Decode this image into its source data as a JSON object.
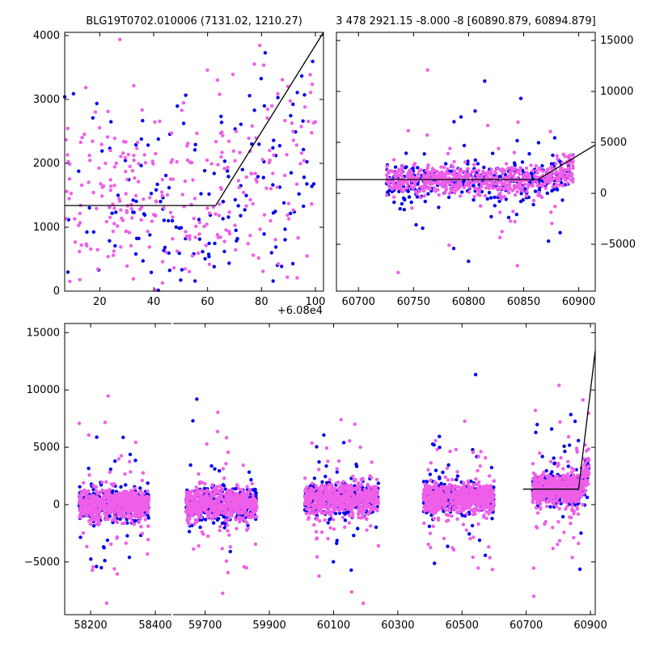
{
  "chart_data": [
    {
      "type": "scatter",
      "panel": "top-left",
      "title": "BLG19T0702.010006 (7131.02, 1210.27)",
      "x_offset_label": "+6.08e4",
      "xlim": [
        7,
        103
      ],
      "ylim": [
        0,
        4050
      ],
      "x_ticks": [
        20,
        40,
        60,
        80,
        100
      ],
      "x_tick_labels": [
        "20",
        "40",
        "60",
        "80",
        "100"
      ],
      "y_ticks": [
        0,
        1000,
        2000,
        3000,
        4000
      ],
      "y_tick_labels": [
        "0",
        "1000",
        "2000",
        "3000",
        "4000"
      ],
      "model_line": {
        "x": [
          7,
          63,
          103
        ],
        "y": [
          1340,
          1340,
          4050
        ]
      },
      "series": [
        {
          "color": "#0000ee",
          "cluster": {
            "xmin": 7,
            "xmax": 100,
            "base": 1300,
            "spread": 800,
            "outliers": 0.12,
            "count": 170
          }
        },
        {
          "color": "#ee5ee8",
          "cluster": {
            "xmin": 7,
            "xmax": 100,
            "base": 1500,
            "spread": 700,
            "outliers": 0.12,
            "count": 300
          }
        }
      ]
    },
    {
      "type": "scatter",
      "panel": "top-right",
      "title": "3 478 2921.15 -8.000 -8 [60890.879, 60894.879]",
      "xlim": [
        60680,
        60915
      ],
      "ylim": [
        -9600,
        15800
      ],
      "x_ticks": [
        60700,
        60750,
        60800,
        60850,
        60900
      ],
      "x_tick_labels": [
        "60700",
        "60750",
        "60800",
        "60850",
        "60900"
      ],
      "y_ticks": [
        -5000,
        0,
        5000,
        10000,
        15000
      ],
      "y_tick_labels": [
        "−5000",
        "0",
        "5000",
        "10000",
        "15000"
      ],
      "model_line": {
        "x": [
          60680,
          60863,
          60915
        ],
        "y": [
          1350,
          1350,
          4750
        ]
      },
      "series": [
        {
          "color": "#0000ee",
          "cluster": {
            "xmin": 60725,
            "xmax": 60895,
            "base": 1100,
            "spread": 900,
            "outliers": 0.1,
            "count": 350
          }
        },
        {
          "color": "#ee5ee8",
          "cluster": {
            "xmin": 60725,
            "xmax": 60895,
            "base": 1300,
            "spread": 700,
            "outliers": 0.1,
            "count": 650
          }
        }
      ]
    },
    {
      "type": "scatter",
      "panel": "bottom",
      "ylim": [
        -9600,
        15800
      ],
      "x_tick_labels": [
        "58200",
        "58400",
        "59700",
        "59900",
        "60100",
        "60300",
        "60500",
        "60700",
        "60900"
      ],
      "y_ticks": [
        -5000,
        0,
        5000,
        10000,
        15000
      ],
      "y_tick_labels": [
        "−5000",
        "0",
        "5000",
        "10000",
        "15000"
      ],
      "segments": [
        {
          "xlim": [
            58120,
            58450
          ],
          "x_ticks": [
            58200,
            58400
          ],
          "x_tick_labels": [
            "58200",
            "58400"
          ]
        },
        {
          "xlim": [
            59600,
            60915
          ],
          "x_ticks": [
            59700,
            59900,
            60100,
            60300,
            60500,
            60700,
            60900
          ],
          "x_tick_labels": [
            "59700",
            "59900",
            "60100",
            "60300",
            "60500",
            "60700",
            "60900"
          ]
        }
      ],
      "seasons": [
        {
          "xmin": 58165,
          "xmax": 58380,
          "base": 0
        },
        {
          "xmin": 59640,
          "xmax": 59860,
          "base": 0
        },
        {
          "xmin": 60010,
          "xmax": 60240,
          "base": 500
        },
        {
          "xmin": 60380,
          "xmax": 60600,
          "base": 600
        },
        {
          "xmin": 60720,
          "xmax": 60895,
          "base": 1300
        }
      ],
      "model_line": {
        "x": [
          60690,
          60863,
          60915
        ],
        "y": [
          1350,
          1350,
          13400
        ]
      },
      "series": [
        {
          "color": "#0000ee",
          "count_per_season": 380
        },
        {
          "color": "#ee5ee8",
          "count_per_season": 650
        }
      ]
    }
  ]
}
